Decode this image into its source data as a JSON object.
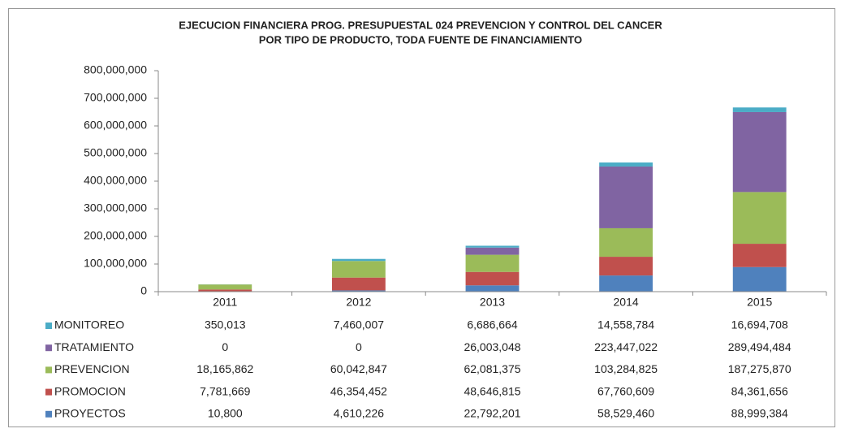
{
  "chart_data": {
    "type": "bar",
    "stacked": true,
    "title": [
      "EJECUCION FINANCIERA PROG. PRESUPUESTAL 024 PREVENCION Y CONTROL DEL CANCER",
      "POR TIPO DE PRODUCTO, TODA FUENTE DE FINANCIAMIENTO"
    ],
    "categories": [
      "2011",
      "2012",
      "2013",
      "2014",
      "2015"
    ],
    "series": [
      {
        "name": "PROYECTOS",
        "color": "#4f81bd",
        "values": [
          10800,
          4610226,
          22792201,
          58529460,
          88999384
        ],
        "value_labels": [
          "10,800",
          "4,610,226",
          "22,792,201",
          "58,529,460",
          "88,999,384"
        ]
      },
      {
        "name": "PROMOCION",
        "color": "#c0504d",
        "values": [
          7781669,
          46354452,
          48646815,
          67760609,
          84361656
        ],
        "value_labels": [
          "7,781,669",
          "46,354,452",
          "48,646,815",
          "67,760,609",
          "84,361,656"
        ]
      },
      {
        "name": "PREVENCION",
        "color": "#9bbb59",
        "values": [
          18165862,
          60042847,
          62081375,
          103284825,
          187275870
        ],
        "value_labels": [
          "18,165,862",
          "60,042,847",
          "62,081,375",
          "103,284,825",
          "187,275,870"
        ]
      },
      {
        "name": "TRATAMIENTO",
        "color": "#8064a2",
        "values": [
          0,
          0,
          26003048,
          223447022,
          289494484
        ],
        "value_labels": [
          "0",
          "0",
          "26,003,048",
          "223,447,022",
          "289,494,484"
        ]
      },
      {
        "name": "MONITOREO",
        "color": "#4bacc6",
        "values": [
          350013,
          7460007,
          6686664,
          14558784,
          16694708
        ],
        "value_labels": [
          "350,013",
          "7,460,007",
          "6,686,664",
          "14,558,784",
          "16,694,708"
        ]
      }
    ],
    "ylim": [
      0,
      800000000
    ],
    "yticks": [
      0,
      {
        "value": 100000000,
        "label": "100,000,000"
      },
      {
        "value": 200000000,
        "label": "200,000,000"
      },
      {
        "value": 300000000,
        "label": "300,000,000"
      },
      {
        "value": 400000000,
        "label": "400,000,000"
      },
      {
        "value": 500000000,
        "label": "500,000,000"
      },
      {
        "value": 600000000,
        "label": "600,000,000"
      },
      {
        "value": 700000000,
        "label": "700,000,000"
      },
      {
        "value": 800000000,
        "label": "800,000,000"
      }
    ],
    "grid": false
  }
}
